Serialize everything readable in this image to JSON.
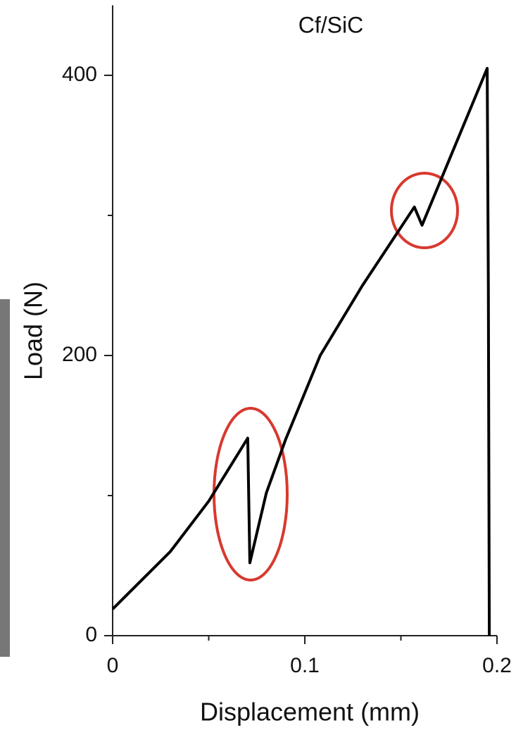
{
  "chart_data": {
    "type": "line",
    "title": "Cf/SiC",
    "xlabel": "Displacement (mm)",
    "ylabel": "Load (N)",
    "x": [
      0,
      0.03,
      0.05,
      0.0703,
      0.0714,
      0.08,
      0.09,
      0.108,
      0.13,
      0.157,
      0.161,
      0.1949,
      0.1955,
      0.196
    ],
    "series": [
      {
        "name": "Cf/SiC",
        "color": "#000000",
        "values": [
          19,
          60,
          96,
          141,
          52,
          102,
          140,
          200,
          250,
          306,
          293,
          405,
          250,
          0
        ]
      }
    ],
    "xlim": [
      0,
      0.2
    ],
    "ylim": [
      0,
      450
    ],
    "xticks": [
      0,
      0.1,
      0.2
    ],
    "yticks": [
      0,
      200,
      400
    ],
    "xminorticks": [
      0.05,
      0.15
    ],
    "yminorticks": [
      100,
      300
    ]
  }
}
